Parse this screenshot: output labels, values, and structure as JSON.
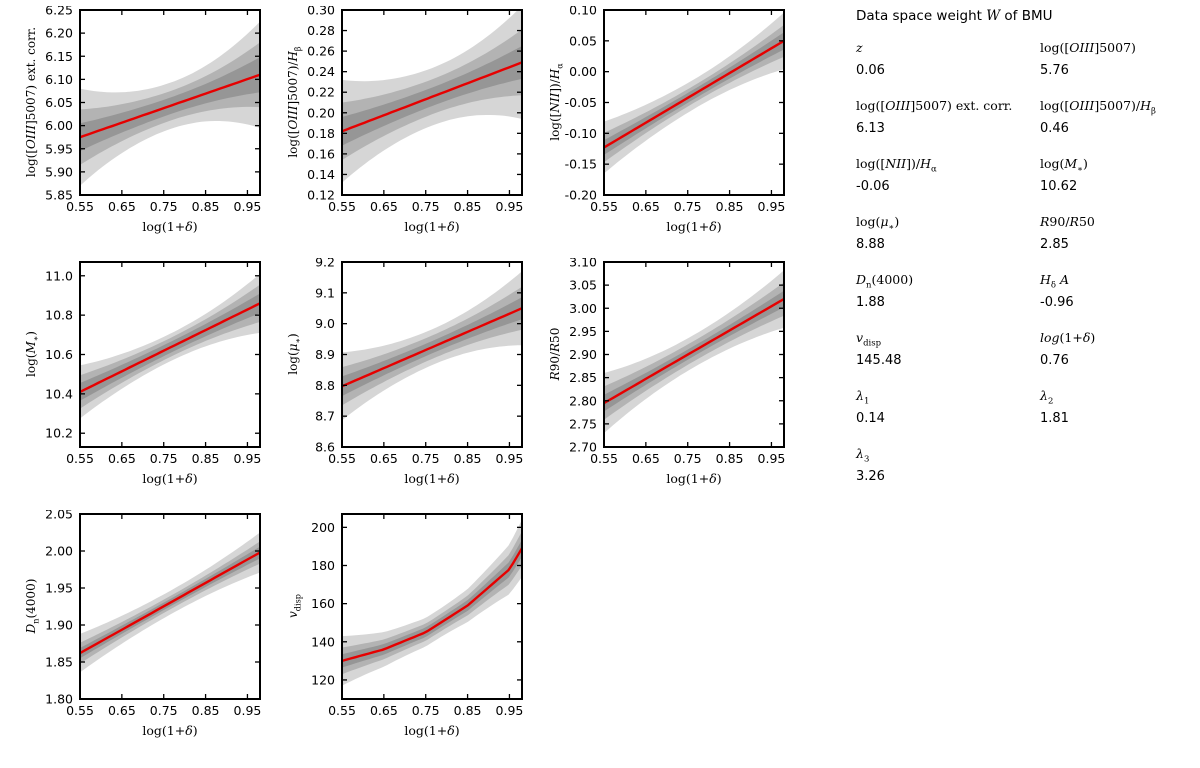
{
  "page": {
    "background": "#ffffff"
  },
  "panel": {
    "title_html": "Data space weight <i>W</i> of BMU",
    "entries": [
      {
        "label_html": "<i>z</i>",
        "value": "0.06"
      },
      {
        "label_html": "log([<i>OIII</i>]5007)",
        "value": "5.76"
      },
      {
        "label_html": "log([<i>OIII</i>]5007) ext. corr.",
        "value": "6.13"
      },
      {
        "label_html": "log([<i>OIII</i>]5007)/<i>H</i><sub>β</sub>",
        "value": "0.46"
      },
      {
        "label_html": "log([<i>NII</i>])/<i>H</i><sub>α</sub>",
        "value": "-0.06"
      },
      {
        "label_html": "log(<i>M</i><sub>∗</sub>)",
        "value": "10.62"
      },
      {
        "label_html": "log(<i>μ</i><sub>∗</sub>)",
        "value": "8.88"
      },
      {
        "label_html": "<i>R</i>90/<i>R</i>50",
        "value": "2.85"
      },
      {
        "label_html": "<i>D</i><sub>n</sub>(4000)",
        "value": "1.88"
      },
      {
        "label_html": "<i>H</i><sub>δ</sub> <i>A</i>",
        "value": "-0.96"
      },
      {
        "label_html": "<i>v</i><sub>disp</sub>",
        "value": "145.48"
      },
      {
        "label_html": "<i>log</i>(1+<i>δ</i>)",
        "value": "0.76"
      },
      {
        "label_html": "<i>λ</i><sub>1</sub>",
        "value": "0.14"
      },
      {
        "label_html": "<i>λ</i><sub>2</sub>",
        "value": "1.81"
      },
      {
        "label_html": "<i>λ</i><sub>3</sub>",
        "value": "3.26"
      }
    ]
  },
  "chart_data": {
    "type": "line",
    "line_color": "#e60000",
    "band_color": "rgba(0,0,0,0.16)",
    "grid": false,
    "legend": "none",
    "xlabel_html": "log(1+<i>δ</i>)",
    "xticks": [
      "0.55",
      "0.65",
      "0.75",
      "0.85",
      "0.95"
    ],
    "plots": [
      {
        "name": "oiii5007-ext-corr",
        "ylabel_html": "log([<i>OIII</i>]5007) ext. corr.",
        "xlim": [
          0.55,
          0.98
        ],
        "ylim": [
          5.85,
          6.25
        ],
        "yticks": [
          "5.85",
          "5.90",
          "5.95",
          "6.00",
          "6.05",
          "6.10",
          "6.15",
          "6.20",
          "6.25"
        ],
        "line": {
          "x": [
            0.55,
            0.98
          ],
          "y": [
            5.975,
            6.11
          ]
        },
        "bands": [
          [
            0.03,
            0.018,
            0.038
          ],
          [
            0.06,
            0.032,
            0.07
          ],
          [
            0.105,
            0.05,
            0.115
          ]
        ]
      },
      {
        "name": "oiii5007-hbeta",
        "ylabel_html": "log([<i>OIII</i>]5007)/<i>H</i><sub>β</sub>",
        "xlim": [
          0.55,
          0.98
        ],
        "ylim": [
          0.12,
          0.3
        ],
        "yticks": [
          "0.12",
          "0.14",
          "0.16",
          "0.18",
          "0.20",
          "0.22",
          "0.24",
          "0.26",
          "0.28",
          "0.30"
        ],
        "line": {
          "x": [
            0.55,
            0.98
          ],
          "y": [
            0.182,
            0.249
          ]
        },
        "bands": [
          [
            0.014,
            0.009,
            0.016
          ],
          [
            0.028,
            0.017,
            0.032
          ],
          [
            0.05,
            0.028,
            0.055
          ]
        ]
      },
      {
        "name": "nii-halpha",
        "ylabel_html": "log([<i>NII</i>])/<i>H</i><sub>α</sub>",
        "xlim": [
          0.55,
          0.98
        ],
        "ylim": [
          -0.2,
          0.1
        ],
        "yticks": [
          "-0.20",
          "-0.15",
          "-0.10",
          "-0.05",
          "0.00",
          "0.05",
          "0.10"
        ],
        "line": {
          "x": [
            0.55,
            0.98
          ],
          "y": [
            -0.123,
            0.05
          ]
        },
        "bands": [
          [
            0.012,
            0.008,
            0.014
          ],
          [
            0.024,
            0.014,
            0.026
          ],
          [
            0.042,
            0.024,
            0.046
          ]
        ]
      },
      {
        "name": "log-mstar",
        "ylabel_html": "log(<i>M</i><sub>∗</sub>)",
        "xlim": [
          0.55,
          0.98
        ],
        "ylim": [
          10.13,
          11.07
        ],
        "yticks": [
          "10.2",
          "10.4",
          "10.6",
          "10.8",
          "11.0"
        ],
        "line": {
          "x": [
            0.55,
            0.98
          ],
          "y": [
            10.41,
            10.86
          ]
        },
        "bands": [
          [
            0.045,
            0.028,
            0.05
          ],
          [
            0.085,
            0.048,
            0.095
          ],
          [
            0.135,
            0.07,
            0.15
          ]
        ]
      },
      {
        "name": "log-mustar",
        "ylabel_html": "log(<i>μ</i><sub>∗</sub>)",
        "xlim": [
          0.55,
          0.98
        ],
        "ylim": [
          8.6,
          9.2
        ],
        "yticks": [
          "8.6",
          "8.7",
          "8.8",
          "8.9",
          "9.0",
          "9.1",
          "9.2"
        ],
        "line": {
          "x": [
            0.55,
            0.98
          ],
          "y": [
            8.797,
            9.05
          ]
        },
        "bands": [
          [
            0.032,
            0.02,
            0.036
          ],
          [
            0.062,
            0.038,
            0.07
          ],
          [
            0.11,
            0.058,
            0.12
          ]
        ]
      },
      {
        "name": "r90-r50",
        "ylabel_html": "<i>R</i>90/<i>R</i>50",
        "xlim": [
          0.55,
          0.98
        ],
        "ylim": [
          2.7,
          3.1
        ],
        "yticks": [
          "2.70",
          "2.75",
          "2.80",
          "2.85",
          "2.90",
          "2.95",
          "3.00",
          "3.05",
          "3.10"
        ],
        "line": {
          "x": [
            0.55,
            0.98
          ],
          "y": [
            2.795,
            3.02
          ]
        },
        "bands": [
          [
            0.018,
            0.011,
            0.018
          ],
          [
            0.036,
            0.022,
            0.036
          ],
          [
            0.065,
            0.035,
            0.062
          ]
        ]
      },
      {
        "name": "dn4000",
        "ylabel_html": "<i>D</i><sub>n</sub>(4000)",
        "xlim": [
          0.55,
          0.98
        ],
        "ylim": [
          1.8,
          2.05
        ],
        "yticks": [
          "1.80",
          "1.85",
          "1.90",
          "1.95",
          "2.00",
          "2.05"
        ],
        "line": {
          "x": [
            0.55,
            0.98
          ],
          "y": [
            1.862,
            1.998
          ]
        },
        "bands": [
          [
            0.007,
            0.005,
            0.008
          ],
          [
            0.014,
            0.009,
            0.015
          ],
          [
            0.026,
            0.016,
            0.027
          ]
        ]
      },
      {
        "name": "vdisp",
        "ylabel_html": "<i>v</i><sub>disp</sub>",
        "xlim": [
          0.55,
          0.98
        ],
        "ylim": [
          110,
          207
        ],
        "yticks": [
          "120",
          "140",
          "160",
          "180",
          "200"
        ],
        "line": {
          "x": [
            0.55,
            0.65,
            0.75,
            0.85,
            0.95,
            0.98
          ],
          "y": [
            130,
            136,
            145,
            159,
            178,
            189
          ]
        },
        "bands": [
          [
            3.5,
            2.5,
            4.5
          ],
          [
            7.0,
            4.5,
            9.0
          ],
          [
            13.0,
            7.5,
            15.0
          ]
        ]
      }
    ]
  }
}
